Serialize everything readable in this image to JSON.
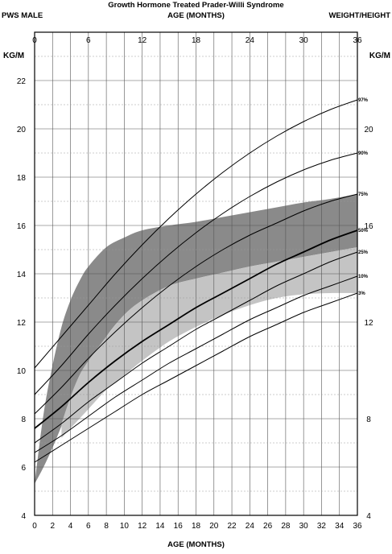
{
  "header": {
    "title": "Growth Hormone Treated Prader-Willi Syndrome",
    "left_label": "PWS MALE",
    "right_label": "WEIGHT/HEIGHT",
    "top_axis_label": "AGE (MONTHS)",
    "bottom_axis_label": "AGE (MONTHS)",
    "left_unit": "KG/M",
    "right_unit": "KG/M"
  },
  "chart_data": {
    "type": "line",
    "title": "Growth Hormone Treated Prader-Willi Syndrome",
    "xlabel": "AGE (MONTHS)",
    "ylabel": "KG/M",
    "xlim": [
      0,
      36
    ],
    "ylim": [
      4,
      24
    ],
    "grid": true,
    "top_ticks": [
      0,
      6,
      12,
      18,
      24,
      30,
      36
    ],
    "bottom_ticks": [
      0,
      2,
      4,
      6,
      8,
      10,
      12,
      14,
      16,
      18,
      20,
      22,
      24,
      26,
      28,
      30,
      32,
      34,
      36
    ],
    "left_ticks": [
      4,
      6,
      8,
      10,
      12,
      14,
      16,
      18,
      20,
      22
    ],
    "right_ticks": [
      4,
      8,
      12,
      16,
      20
    ],
    "x": [
      0,
      3,
      6,
      9,
      12,
      15,
      18,
      21,
      24,
      27,
      30,
      33,
      36
    ],
    "series": [
      {
        "name": "97%",
        "values": [
          10.1,
          11.4,
          12.7,
          14.0,
          15.2,
          16.3,
          17.3,
          18.2,
          19.0,
          19.7,
          20.3,
          20.8,
          21.2
        ]
      },
      {
        "name": "90%",
        "values": [
          9.0,
          10.2,
          11.5,
          12.7,
          13.8,
          14.8,
          15.7,
          16.5,
          17.2,
          17.8,
          18.3,
          18.7,
          19.0
        ]
      },
      {
        "name": "75%",
        "values": [
          8.2,
          9.3,
          10.5,
          11.6,
          12.6,
          13.5,
          14.3,
          15.0,
          15.6,
          16.1,
          16.6,
          17.0,
          17.3
        ]
      },
      {
        "name": "50%",
        "values": [
          7.6,
          8.5,
          9.5,
          10.4,
          11.2,
          11.9,
          12.6,
          13.2,
          13.8,
          14.4,
          14.9,
          15.4,
          15.8
        ]
      },
      {
        "name": "25%",
        "values": [
          7.0,
          7.8,
          8.7,
          9.5,
          10.3,
          11.0,
          11.7,
          12.3,
          12.9,
          13.5,
          14.0,
          14.5,
          14.9
        ]
      },
      {
        "name": "10%",
        "values": [
          6.6,
          7.3,
          8.1,
          8.9,
          9.6,
          10.3,
          10.9,
          11.5,
          12.1,
          12.6,
          13.1,
          13.5,
          13.9
        ]
      },
      {
        "name": "3%",
        "values": [
          6.2,
          6.9,
          7.6,
          8.3,
          9.0,
          9.6,
          10.2,
          10.8,
          11.4,
          11.9,
          12.4,
          12.8,
          13.2
        ]
      }
    ],
    "bands": [
      {
        "color": "#8a8a8a",
        "x": [
          0,
          1,
          2,
          3,
          4,
          5,
          6,
          8,
          10,
          12,
          15,
          18,
          21,
          24,
          27,
          30,
          33,
          36
        ],
        "upper": [
          5.3,
          8.2,
          10.2,
          11.8,
          12.9,
          13.7,
          14.3,
          15.1,
          15.5,
          15.8,
          16.0,
          16.15,
          16.35,
          16.55,
          16.75,
          16.95,
          17.1,
          17.3
        ],
        "lower": [
          5.3,
          6.0,
          6.8,
          7.7,
          8.6,
          9.4,
          10.2,
          11.4,
          12.3,
          12.9,
          13.5,
          13.8,
          14.05,
          14.3,
          14.5,
          14.7,
          14.9,
          15.1
        ]
      },
      {
        "color": "#c4c4c4",
        "x": [
          3,
          4,
          5,
          6,
          8,
          10,
          12,
          15,
          18,
          21,
          24,
          27,
          30,
          33,
          36
        ],
        "upper": [
          7.8,
          8.9,
          9.8,
          10.4,
          11.4,
          12.3,
          12.9,
          13.5,
          13.8,
          14.05,
          14.3,
          14.5,
          14.7,
          14.9,
          15.1
        ],
        "lower": [
          7.2,
          7.6,
          8.0,
          8.4,
          9.2,
          9.8,
          10.4,
          11.2,
          11.8,
          12.3,
          12.7,
          13.0,
          13.15,
          13.2,
          13.2
        ]
      }
    ]
  }
}
